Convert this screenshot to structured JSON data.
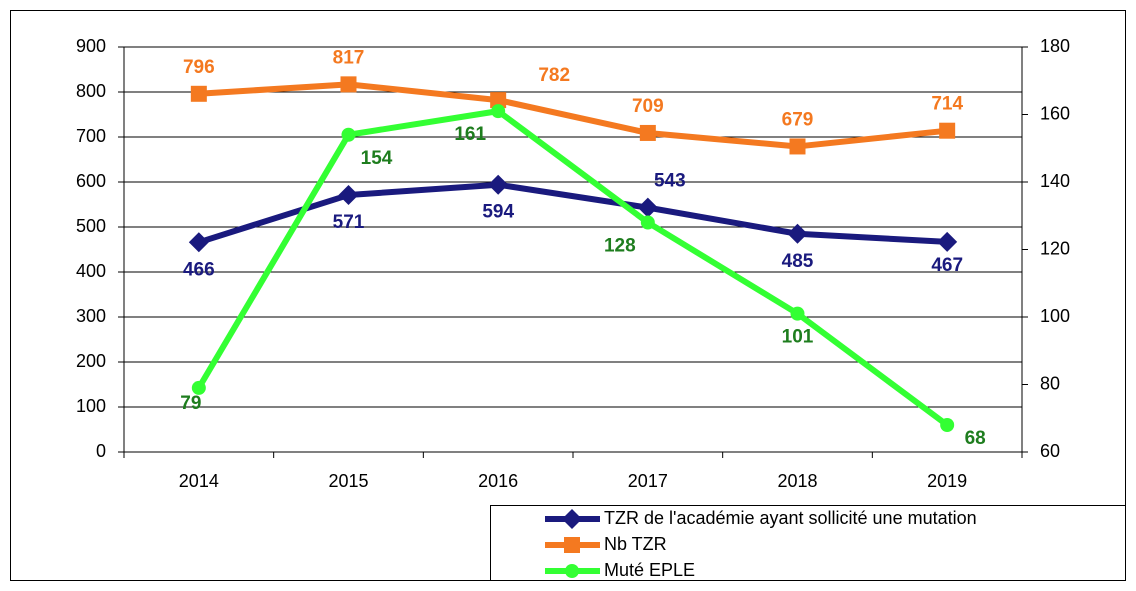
{
  "chart_data": {
    "type": "line",
    "categories": [
      "2014",
      "2015",
      "2016",
      "2017",
      "2018",
      "2019"
    ],
    "series": [
      {
        "name": "TZR de l'académie ayant sollicité une mutation",
        "color": "#1a1a7e",
        "marker": "diamond",
        "label_color": "#1a1a7e",
        "values": [
          466,
          571,
          594,
          543,
          485,
          467
        ]
      },
      {
        "name": "Nb TZR",
        "color": "#f47920",
        "marker": "square",
        "label_color": "#f47920",
        "values": [
          796,
          817,
          782,
          709,
          679,
          714
        ]
      },
      {
        "name": "Muté EPLE",
        "color": "#33ff33",
        "marker": "circle",
        "label_color": "#1e7d1e",
        "axis": "y2",
        "values": [
          79,
          154,
          161,
          128,
          101,
          68
        ]
      }
    ],
    "ylim": [
      0,
      900
    ],
    "yticks": [
      0,
      100,
      200,
      300,
      400,
      500,
      600,
      700,
      800,
      900
    ],
    "y2lim": [
      60,
      180
    ],
    "y2ticks": [
      60,
      80,
      100,
      120,
      140,
      160,
      180
    ],
    "grid": true,
    "legend": "bottom-right"
  }
}
